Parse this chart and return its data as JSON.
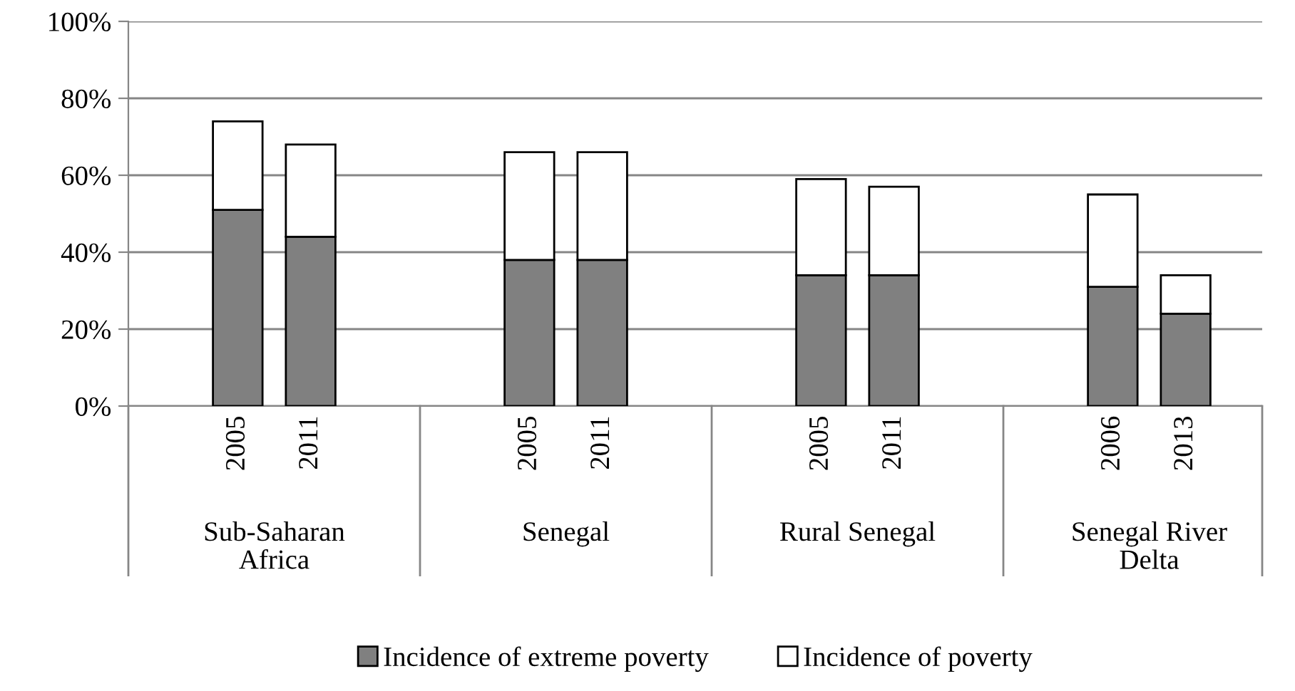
{
  "chart_data": {
    "type": "bar",
    "stacked": true,
    "categories": [
      null,
      "2005",
      "2011",
      null,
      null,
      "2005",
      "2011",
      null,
      null,
      "2005",
      "2011",
      null,
      null,
      "2006",
      "2013",
      null
    ],
    "series": [
      {
        "name": "Incidence of extreme poverty",
        "color": "#808080",
        "values": [
          null,
          51,
          44,
          null,
          null,
          38,
          38,
          null,
          null,
          34,
          34,
          null,
          null,
          31,
          24,
          null
        ]
      },
      {
        "name": "Incidence of poverty",
        "color": "#ffffff",
        "values": [
          null,
          23,
          24,
          null,
          null,
          28,
          28,
          null,
          null,
          25,
          23,
          null,
          null,
          24,
          10,
          null
        ]
      }
    ],
    "ylim": [
      0,
      100
    ],
    "yticks": [
      {
        "value": 0,
        "label": "0%"
      },
      {
        "value": 20,
        "label": "20%"
      },
      {
        "value": 40,
        "label": "40%"
      },
      {
        "value": 60,
        "label": "60%"
      },
      {
        "value": 80,
        "label": "80%"
      },
      {
        "value": 100,
        "label": "100%"
      }
    ],
    "grid": "y",
    "legend": "bottom",
    "annotations": [
      "Sub-Saharan\nAfrica",
      "Senegal",
      "Rural Senegal",
      "Senegal River\nDelta"
    ]
  }
}
